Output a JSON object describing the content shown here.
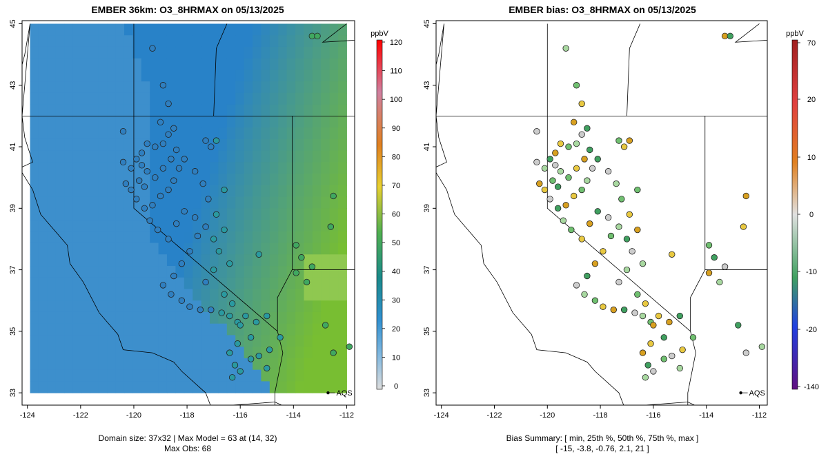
{
  "left_panel": {
    "title": "EMBER 36km: O3_8HRMAX on 05/13/2025",
    "colorbar_unit": "ppbV",
    "colorbar_ticks": [
      "120",
      "110",
      "100",
      "90",
      "80",
      "70",
      "60",
      "50",
      "40",
      "30",
      "20",
      "10",
      "0"
    ],
    "colorbar_values": [
      120,
      110,
      100,
      90,
      80,
      70,
      60,
      50,
      40,
      30,
      20,
      10,
      0
    ],
    "caption_line1": "Domain size: 37x32 | Max Model = 63 at (14, 32)",
    "caption_line2": "Max Obs: 68",
    "legend_label": "AQS"
  },
  "right_panel": {
    "title": "EMBER bias: O3_8HRMAX on 05/13/2025",
    "colorbar_unit": "ppbV",
    "colorbar_ticks": [
      "70",
      "20",
      "10",
      "0",
      "-10",
      "-20",
      "-140"
    ],
    "colorbar_values": [
      70,
      20,
      10,
      0,
      -10,
      -20,
      -140
    ],
    "caption_line1": "Bias Summary: [ min, 25th %, 50th %, 75th %, max ]",
    "caption_line2": "[ -15,   -3.8,   -0.76,   2.1,   21 ]",
    "legend_label": "AQS"
  },
  "axes": {
    "x_ticks": [
      "-124",
      "-122",
      "-120",
      "-118",
      "-116",
      "-114",
      "-112"
    ],
    "x_values": [
      -124,
      -122,
      -120,
      -118,
      -116,
      -114,
      -112
    ],
    "y_ticks": [
      "33",
      "35",
      "37",
      "39",
      "41",
      "43",
      "45"
    ],
    "y_values": [
      33,
      35,
      37,
      39,
      41,
      43,
      45
    ],
    "lon_range": [
      -124.2,
      -111.7
    ],
    "lat_range": [
      32.6,
      45.1
    ]
  },
  "stations": [
    [
      -120.4,
      41.5
    ],
    [
      -119.3,
      44.2
    ],
    [
      -118.9,
      43.0
    ],
    [
      -118.7,
      42.4
    ],
    [
      -119.0,
      41.8
    ],
    [
      -118.5,
      41.6
    ],
    [
      -118.7,
      41.4
    ],
    [
      -118.9,
      41.1
    ],
    [
      -119.2,
      41.0
    ],
    [
      -119.5,
      41.1
    ],
    [
      -119.7,
      40.8
    ],
    [
      -119.9,
      40.6
    ],
    [
      -119.7,
      40.4
    ],
    [
      -119.5,
      40.2
    ],
    [
      -119.2,
      40.0
    ],
    [
      -118.9,
      40.3
    ],
    [
      -118.6,
      40.6
    ],
    [
      -118.4,
      40.9
    ],
    [
      -118.3,
      40.3
    ],
    [
      -118.5,
      39.9
    ],
    [
      -118.7,
      39.6
    ],
    [
      -119.0,
      39.4
    ],
    [
      -119.3,
      39.1
    ],
    [
      -119.6,
      39.0
    ],
    [
      -119.9,
      39.3
    ],
    [
      -119.4,
      38.6
    ],
    [
      -119.1,
      38.3
    ],
    [
      -118.7,
      38.0
    ],
    [
      -118.4,
      38.5
    ],
    [
      -118.1,
      38.9
    ],
    [
      -117.7,
      38.7
    ],
    [
      -117.3,
      38.4
    ],
    [
      -117.6,
      38.1
    ],
    [
      -117.9,
      37.6
    ],
    [
      -118.2,
      37.2
    ],
    [
      -118.5,
      36.8
    ],
    [
      -118.9,
      36.5
    ],
    [
      -118.6,
      36.2
    ],
    [
      -118.2,
      36.0
    ],
    [
      -117.9,
      35.8
    ],
    [
      -117.5,
      35.7
    ],
    [
      -117.1,
      35.7
    ],
    [
      -116.7,
      35.6
    ],
    [
      -116.4,
      35.5
    ],
    [
      -116.1,
      35.3
    ],
    [
      -115.8,
      35.5
    ],
    [
      -115.4,
      35.3
    ],
    [
      -115.0,
      35.5
    ],
    [
      -117.3,
      36.6
    ],
    [
      -117.0,
      37.0
    ],
    [
      -116.6,
      36.2
    ],
    [
      -116.3,
      35.9
    ],
    [
      -116.0,
      35.2
    ],
    [
      -115.6,
      34.8
    ],
    [
      -115.3,
      34.2
    ],
    [
      -115.0,
      33.8
    ],
    [
      -115.6,
      34.1
    ],
    [
      -116.1,
      34.6
    ],
    [
      -116.4,
      34.3
    ],
    [
      -116.2,
      33.9
    ],
    [
      -116.0,
      33.7
    ],
    [
      -116.3,
      33.5
    ],
    [
      -117.3,
      41.2
    ],
    [
      -117.1,
      41.0
    ],
    [
      -116.9,
      41.2
    ],
    [
      -118.1,
      40.6
    ],
    [
      -117.7,
      40.2
    ],
    [
      -117.4,
      39.8
    ],
    [
      -117.2,
      39.3
    ],
    [
      -116.9,
      38.8
    ],
    [
      -116.6,
      38.3
    ],
    [
      -117.0,
      38.0
    ],
    [
      -116.8,
      37.6
    ],
    [
      -116.4,
      37.2
    ],
    [
      -116.6,
      39.6
    ],
    [
      -115.3,
      37.5
    ],
    [
      -113.9,
      36.9
    ],
    [
      -113.7,
      37.4
    ],
    [
      -113.3,
      37.1
    ],
    [
      -113.5,
      36.6
    ],
    [
      -113.9,
      37.8
    ],
    [
      -112.6,
      38.4
    ],
    [
      -112.5,
      39.4
    ],
    [
      -112.8,
      35.2
    ],
    [
      -112.5,
      34.3
    ],
    [
      -111.9,
      34.5
    ],
    [
      -114.5,
      34.8
    ],
    [
      -114.9,
      34.4
    ],
    [
      -113.3,
      44.6
    ],
    [
      -113.1,
      44.6
    ],
    [
      -120.4,
      40.5
    ],
    [
      -120.1,
      40.3
    ],
    [
      -119.8,
      39.9
    ],
    [
      -120.1,
      39.6
    ],
    [
      -120.3,
      39.8
    ],
    [
      -119.6,
      39.7
    ]
  ],
  "right_visible_stations": [
    [
      -120.4,
      41.5
    ],
    [
      -119.3,
      44.2
    ],
    [
      -118.9,
      43.0
    ],
    [
      -118.7,
      42.4
    ],
    [
      -119.0,
      41.8
    ],
    [
      -118.5,
      41.6
    ],
    [
      -118.7,
      41.4
    ],
    [
      -118.9,
      41.1
    ],
    [
      -119.2,
      41.0
    ],
    [
      -119.5,
      41.1
    ],
    [
      -119.7,
      40.8
    ],
    [
      -119.9,
      40.6
    ],
    [
      -119.7,
      40.4
    ],
    [
      -119.5,
      40.2
    ],
    [
      -119.2,
      40.0
    ],
    [
      -118.9,
      40.3
    ],
    [
      -118.6,
      40.6
    ],
    [
      -118.4,
      40.9
    ],
    [
      -118.3,
      40.3
    ],
    [
      -118.5,
      39.9
    ],
    [
      -118.7,
      39.6
    ],
    [
      -119.0,
      39.4
    ],
    [
      -119.3,
      39.1
    ],
    [
      -119.6,
      39.0
    ],
    [
      -119.9,
      39.3
    ],
    [
      -119.4,
      38.6
    ],
    [
      -119.1,
      38.3
    ],
    [
      -118.7,
      38.0
    ],
    [
      -118.4,
      38.5
    ],
    [
      -118.1,
      38.9
    ],
    [
      -117.7,
      38.7
    ],
    [
      -117.3,
      38.4
    ],
    [
      -117.6,
      38.1
    ],
    [
      -117.9,
      37.6
    ],
    [
      -118.2,
      37.2
    ],
    [
      -118.5,
      36.8
    ],
    [
      -118.9,
      36.5
    ],
    [
      -118.6,
      36.2
    ],
    [
      -118.2,
      36.0
    ],
    [
      -117.9,
      35.8
    ],
    [
      -117.5,
      35.7
    ],
    [
      -117.1,
      35.7
    ],
    [
      -116.7,
      35.6
    ],
    [
      -116.4,
      35.5
    ],
    [
      -116.1,
      35.3
    ],
    [
      -115.8,
      35.5
    ],
    [
      -115.4,
      35.3
    ],
    [
      -115.0,
      35.5
    ],
    [
      -117.3,
      36.6
    ],
    [
      -117.0,
      37.0
    ],
    [
      -116.6,
      36.2
    ],
    [
      -116.3,
      35.9
    ],
    [
      -116.0,
      35.2
    ],
    [
      -115.6,
      34.8
    ],
    [
      -115.3,
      34.2
    ],
    [
      -115.0,
      33.8
    ],
    [
      -115.6,
      34.1
    ],
    [
      -116.1,
      34.6
    ],
    [
      -116.4,
      34.3
    ],
    [
      -116.2,
      33.9
    ],
    [
      -116.0,
      33.7
    ],
    [
      -116.3,
      33.5
    ],
    [
      -117.3,
      41.2
    ],
    [
      -117.1,
      41.0
    ],
    [
      -116.9,
      41.2
    ],
    [
      -118.1,
      40.6
    ],
    [
      -117.7,
      40.2
    ],
    [
      -117.4,
      39.8
    ],
    [
      -117.2,
      39.3
    ],
    [
      -116.9,
      38.8
    ],
    [
      -116.6,
      38.3
    ],
    [
      -117.0,
      38.0
    ],
    [
      -116.8,
      37.6
    ],
    [
      -116.4,
      37.2
    ],
    [
      -116.6,
      39.6
    ],
    [
      -115.3,
      37.5
    ],
    [
      -113.9,
      36.9
    ],
    [
      -113.7,
      37.4
    ],
    [
      -113.3,
      37.1
    ],
    [
      -113.5,
      36.6
    ],
    [
      -113.9,
      37.8
    ],
    [
      -112.6,
      38.4
    ],
    [
      -112.5,
      39.4
    ],
    [
      -112.8,
      35.2
    ],
    [
      -112.5,
      34.3
    ],
    [
      -111.9,
      34.5
    ],
    [
      -114.5,
      34.8
    ],
    [
      -114.9,
      34.4
    ],
    [
      -113.3,
      44.6
    ],
    [
      -113.1,
      44.6
    ],
    [
      -120.4,
      40.5
    ],
    [
      -120.1,
      40.3
    ],
    [
      -119.8,
      39.9
    ],
    [
      -120.1,
      39.6
    ],
    [
      -120.3,
      39.8
    ],
    [
      -119.6,
      39.7
    ]
  ]
}
